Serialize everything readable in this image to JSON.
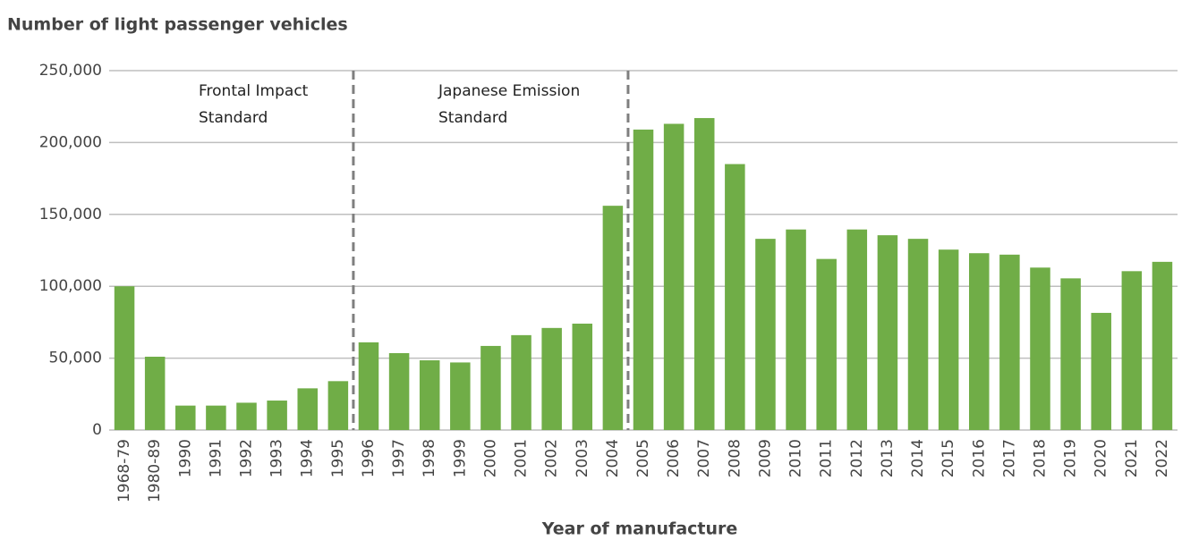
{
  "chart_data": {
    "type": "bar",
    "title": "Number of light passenger vehicles",
    "x_label": "Year of manufacture",
    "categories": [
      "1968-79",
      "1980-89",
      "1990",
      "1991",
      "1992",
      "1993",
      "1994",
      "1995",
      "1996",
      "1997",
      "1998",
      "1999",
      "2000",
      "2001",
      "2002",
      "2003",
      "2004",
      "2005",
      "2006",
      "2007",
      "2008",
      "2009",
      "2010",
      "2011",
      "2012",
      "2013",
      "2014",
      "2015",
      "2016",
      "2017",
      "2018",
      "2019",
      "2020",
      "2021",
      "2022"
    ],
    "values": [
      100000,
      51000,
      17000,
      17000,
      19000,
      20500,
      29000,
      34000,
      61000,
      53500,
      48500,
      47000,
      58500,
      66000,
      71000,
      74000,
      156000,
      209000,
      213000,
      217000,
      185000,
      133000,
      139500,
      119000,
      139500,
      135500,
      133000,
      125500,
      123000,
      122000,
      113000,
      105500,
      81500,
      110500,
      117000
    ],
    "color": "#70ad47",
    "ylim": [
      0,
      250000
    ],
    "yticks": [
      0,
      {
        "value": 50000,
        "label": "50,000"
      },
      {
        "value": 100000,
        "label": "100,000"
      },
      {
        "value": 150000,
        "label": "150,000"
      },
      {
        "value": 200000,
        "label": "200,000"
      },
      {
        "value": 250000,
        "label": "250,000"
      }
    ],
    "grid": true,
    "annotations": [
      {
        "lines": [
          "Frontal Impact",
          "Standard"
        ]
      },
      {
        "lines": [
          "Japanese Emission",
          "Standard"
        ]
      }
    ]
  }
}
